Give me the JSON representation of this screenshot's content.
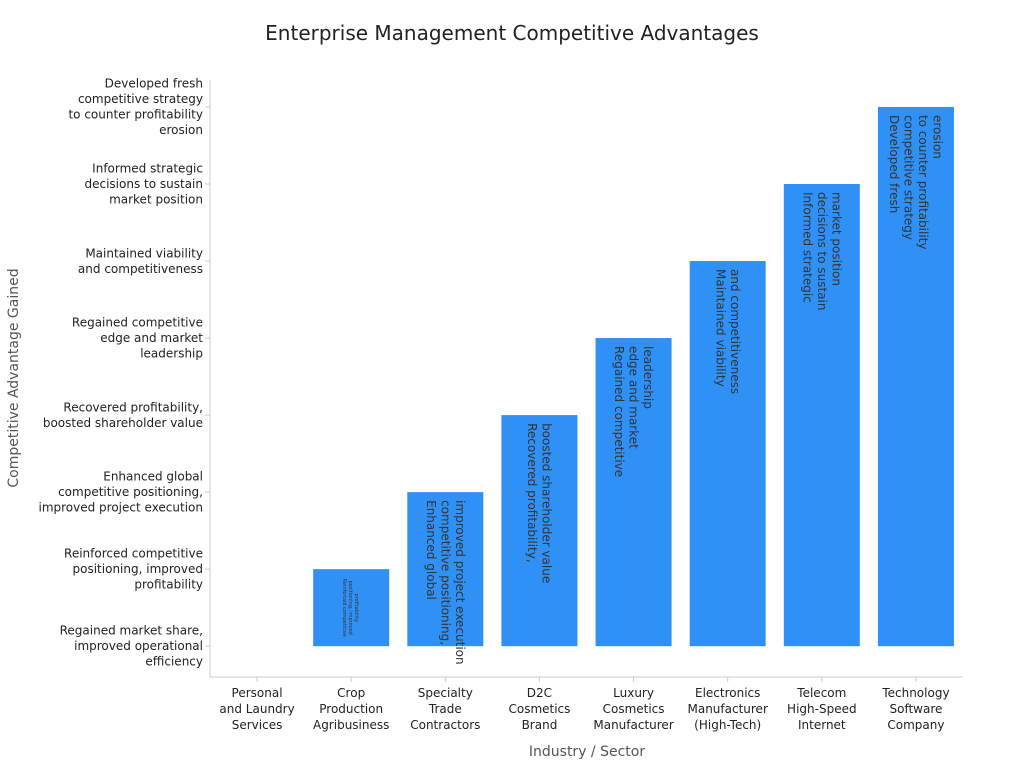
{
  "chart_data": {
    "type": "bar",
    "title": "Enterprise Management Competitive Advantages",
    "xlabel": "Industry / Sector",
    "ylabel": "Competitive Advantage Gained",
    "categories": [
      [
        "Personal",
        "and Laundry",
        "Services"
      ],
      [
        "Crop",
        "Production",
        "Agribusiness"
      ],
      [
        "Specialty",
        "Trade",
        "Contractors"
      ],
      [
        "D2C",
        "Cosmetics",
        "Brand"
      ],
      [
        "Luxury",
        "Cosmetics",
        "Manufacturer"
      ],
      [
        "Electronics",
        "Manufacturer",
        "(High-Tech)"
      ],
      [
        "Telecom",
        "High-Speed",
        "Internet"
      ],
      [
        "Technology",
        "Software",
        "Company"
      ]
    ],
    "y_levels": [
      [
        "Regained market share,",
        "improved operational",
        "efficiency"
      ],
      [
        "Reinforced competitive",
        "positioning, improved",
        "profitability"
      ],
      [
        "Enhanced global",
        "competitive positioning,",
        "improved project execution"
      ],
      [
        "Recovered profitability,",
        "boosted shareholder value"
      ],
      [
        "Regained competitive",
        "edge and market",
        "leadership"
      ],
      [
        "Maintained viability",
        "and competitiveness"
      ],
      [
        "Informed strategic",
        "decisions to sustain",
        "market position"
      ],
      [
        "Developed fresh",
        "competitive strategy",
        "to counter profitability",
        "erosion"
      ]
    ],
    "values": [
      0,
      1,
      2,
      3,
      4,
      5,
      6,
      7
    ],
    "bar_labels": [
      [],
      [
        "Reinforced competitive",
        "positioning, improved",
        "profitability"
      ],
      [
        "Enhanced global",
        "competitive positioning,",
        "improved project execution"
      ],
      [
        "Recovered profitability,",
        "boosted shareholder value"
      ],
      [
        "Regained competitive",
        "edge and market",
        "leadership"
      ],
      [
        "Maintained viability",
        "and competitiveness"
      ],
      [
        "Informed strategic",
        "decisions to sustain",
        "market position"
      ],
      [
        "Developed fresh",
        "competitive strategy",
        "to counter profitability",
        "erosion"
      ]
    ],
    "ylim": [
      -0.4,
      7.35
    ],
    "bar_color": "#2f91f5",
    "grid": false,
    "legend": "none"
  }
}
